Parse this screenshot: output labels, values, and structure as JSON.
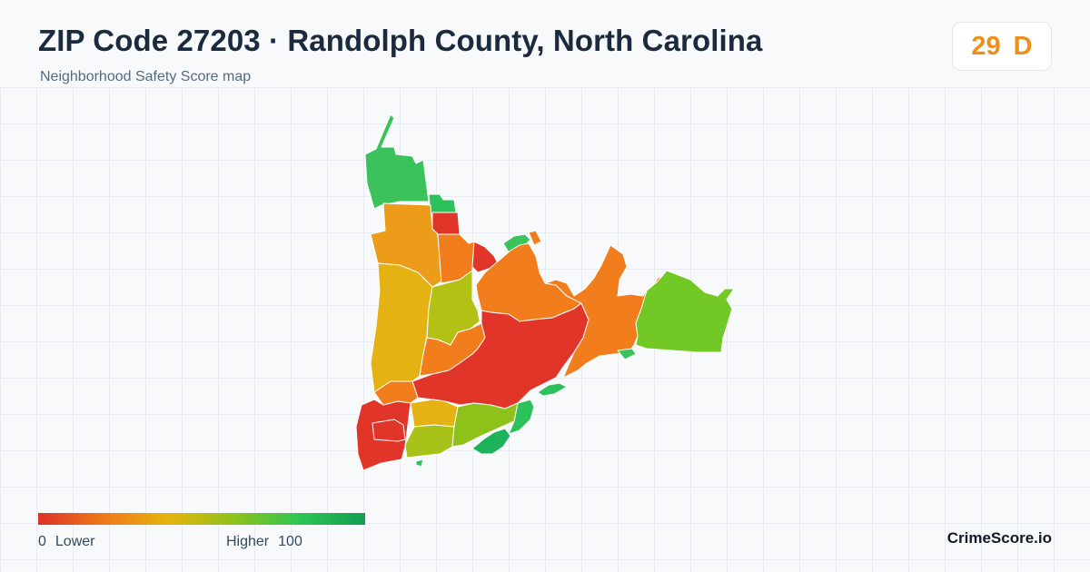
{
  "header": {
    "title": "ZIP Code 27203 · Randolph County, North Carolina",
    "subtitle": "Neighborhood Safety Score map"
  },
  "score": {
    "value": "29",
    "grade": "D",
    "color": "#ee8e1b"
  },
  "legend": {
    "min_value": "0",
    "min_label": "Lower",
    "max_label": "Higher",
    "max_value": "100",
    "gradient_stops": [
      "#dc3226",
      "#ee7a1a",
      "#e6b40e",
      "#8ec21a",
      "#2ec454",
      "#119e50"
    ]
  },
  "brand": "CrimeScore.io"
}
